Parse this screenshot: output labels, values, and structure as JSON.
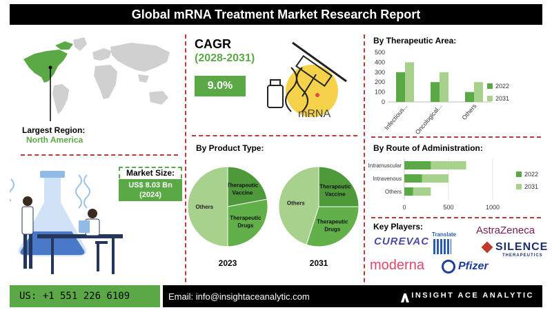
{
  "header": {
    "title": "Global mRNA Treatment Market Research Report"
  },
  "region": {
    "label": "Largest Region:",
    "value": "North America"
  },
  "cagr": {
    "label": "CAGR",
    "period": "(2028-2031)",
    "value": "9.0%",
    "image_text": "mRNA"
  },
  "market_size": {
    "label": "Market Size:",
    "value_line1": "US$ 8.03 Bn",
    "value_line2": "(2024)"
  },
  "sections": {
    "therapeutic_area": "By Therapeutic Area:",
    "route": "By Route of Administration:",
    "product_type": "By Product Type:",
    "key_players": "Key Players:"
  },
  "key_players": [
    "CUREVAC",
    "Translate",
    "AstraZeneca",
    "SILENCE",
    "THERAPEUTICS",
    "moderna",
    "Pfizer"
  ],
  "footer": {
    "phone": "US: +1 551 226 6109",
    "email": "Email: info@insightaceanalytic.com",
    "brand": "INSIGHT ACE ANALYTIC"
  },
  "colors": {
    "green_dark": "#5aa846",
    "green_light": "#a9d18e",
    "red_dash": "#b83a3a"
  },
  "chart_data": [
    {
      "type": "bar",
      "title": "By Therapeutic Area:",
      "categories": [
        "Infectious...",
        "Oncological...",
        "Others"
      ],
      "series": [
        {
          "name": "2022",
          "values": [
            300,
            200,
            100
          ]
        },
        {
          "name": "2031",
          "values": [
            400,
            300,
            200
          ]
        }
      ],
      "ylim": [
        0,
        500
      ],
      "yticks": [
        "0",
        "100",
        "200",
        "300",
        "400",
        "500"
      ],
      "grid": false,
      "legend": "right"
    },
    {
      "type": "bar",
      "orientation": "horizontal",
      "title": "By Route of Administration:",
      "categories": [
        "Intramuscular",
        "Intravenous",
        "Others"
      ],
      "series": [
        {
          "name": "2022",
          "values": [
            300,
            200,
            100
          ]
        },
        {
          "name": "2031",
          "values": [
            400,
            300,
            200
          ]
        }
      ],
      "xlim": [
        0,
        1000
      ],
      "xticks": [
        "0",
        "500",
        "1000"
      ],
      "stacked": true,
      "legend": "right"
    },
    {
      "type": "pie",
      "title": "By Product Type:",
      "label": "2023",
      "slices": [
        {
          "name": "Therapeutic Vaccine",
          "value": 22
        },
        {
          "name": "Therapeutic Drugs",
          "value": 28
        },
        {
          "name": "Others",
          "value": 50
        }
      ]
    },
    {
      "type": "pie",
      "label": "2031",
      "slices": [
        {
          "name": "Therapeutic Vaccine",
          "value": 25
        },
        {
          "name": "Therapeutic Drugs",
          "value": 30
        },
        {
          "name": "Others",
          "value": 45
        }
      ]
    }
  ]
}
